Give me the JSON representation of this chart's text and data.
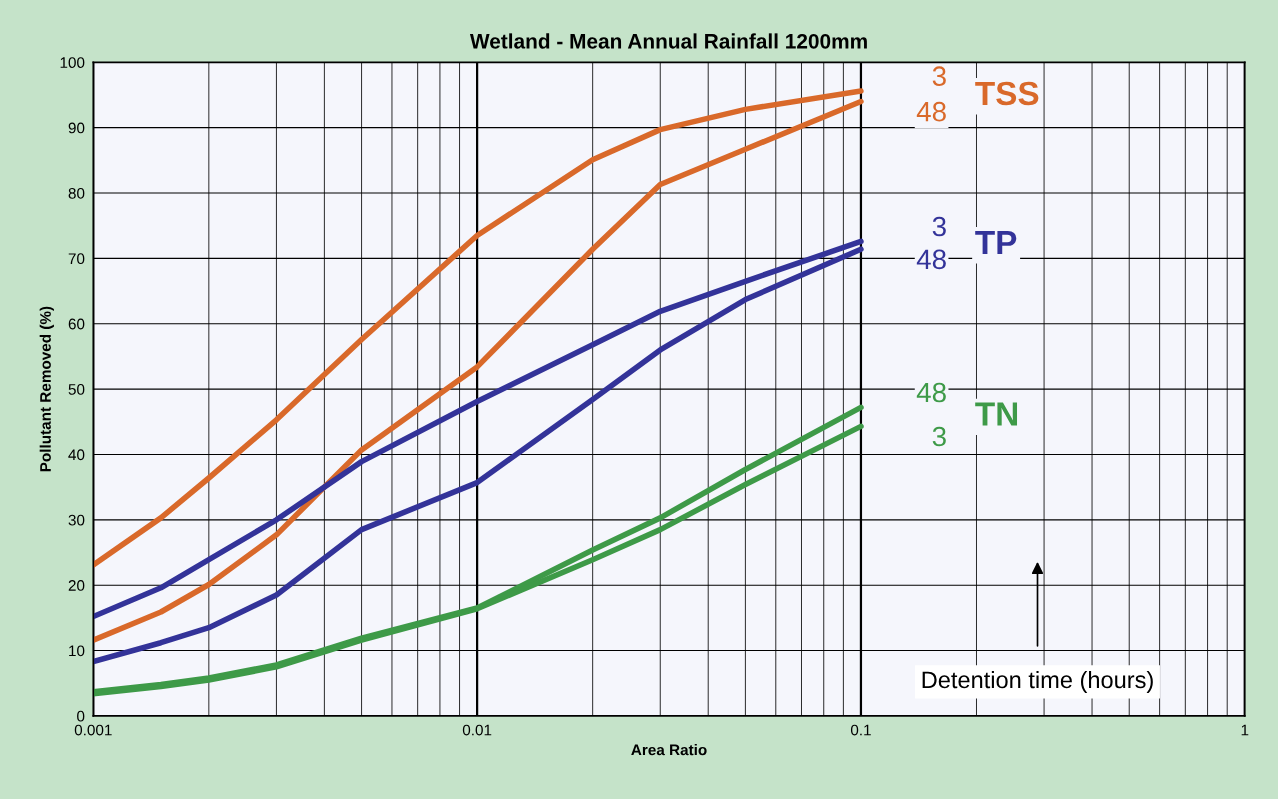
{
  "chart_data": {
    "type": "line",
    "title": "Wetland - Mean Annual Rainfall 1200mm",
    "xlabel": "Area Ratio",
    "ylabel": "Pollutant Removed (%)",
    "log": "x",
    "xlim": [
      0.001,
      1
    ],
    "xticks": [
      0.001,
      0.01,
      0.1,
      1
    ],
    "ylim": [
      0,
      100
    ],
    "yticks": [
      0,
      10,
      20,
      30,
      40,
      50,
      60,
      70,
      80,
      90,
      100
    ],
    "grid": true,
    "x": [
      0.001,
      0.0015,
      0.002,
      0.003,
      0.005,
      0.01,
      0.02,
      0.03,
      0.05,
      0.1
    ],
    "series": [
      {
        "name": "3",
        "color": "#d9692a",
        "values": [
          23.1,
          30.3,
          36.4,
          45.3,
          57.6,
          73.5,
          85.1,
          89.7,
          92.8,
          95.6
        ]
      },
      {
        "name": "48",
        "color": "#d9692a",
        "values": [
          11.6,
          15.9,
          20.1,
          27.7,
          40.7,
          53.4,
          71.4,
          81.3,
          86.7,
          94.0
        ]
      },
      {
        "name": "3",
        "color": "#333399",
        "values": [
          15.2,
          19.6,
          23.9,
          30.0,
          38.9,
          48.1,
          56.8,
          61.9,
          66.5,
          72.6
        ]
      },
      {
        "name": "48",
        "color": "#333399",
        "values": [
          8.3,
          11.2,
          13.5,
          18.5,
          28.5,
          35.7,
          48.4,
          56.0,
          63.7,
          71.4
        ]
      },
      {
        "name": "48",
        "color": "#3e9a48",
        "values": [
          3.7,
          4.8,
          5.8,
          7.8,
          11.9,
          16.5,
          25.4,
          30.3,
          37.7,
          47.2
        ]
      },
      {
        "name": "3",
        "color": "#3e9a48",
        "values": [
          3.4,
          4.5,
          5.5,
          7.5,
          11.6,
          16.4,
          23.9,
          28.5,
          35.4,
          44.3
        ]
      }
    ],
    "annotations": [
      "TSS",
      "TP",
      "TN",
      "Detention time (hours)"
    ]
  }
}
